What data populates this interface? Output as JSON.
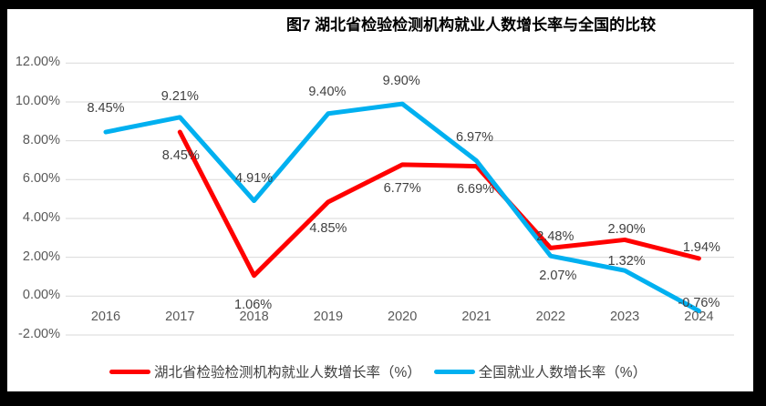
{
  "title": "图7 湖北省检验检测机构就业人数增长率与全国的比较",
  "chart_data": {
    "type": "line",
    "title": "图7 湖北省检验检测机构就业人数增长率与全国的比较",
    "categories": [
      "2016",
      "2017",
      "2018",
      "2019",
      "2020",
      "2021",
      "2022",
      "2023",
      "2024"
    ],
    "y_ticks": [
      "12.00%",
      "10.00%",
      "8.00%",
      "6.00%",
      "4.00%",
      "2.00%",
      "0.00%",
      "-2.00%"
    ],
    "y_tick_values": [
      12,
      10,
      8,
      6,
      4,
      2,
      0,
      -2
    ],
    "ylim": [
      -2,
      12
    ],
    "grid": true,
    "legend_position": "bottom",
    "grid_color": "#D9D9D9",
    "series": [
      {
        "name": "湖北省检验检测机构就业人数增长率（%）",
        "color": "#FF0000",
        "values": [
          null,
          8.45,
          1.06,
          4.85,
          6.77,
          6.69,
          2.48,
          2.9,
          1.94
        ],
        "labels": [
          "",
          "8.45%",
          "1.06%",
          "4.85%",
          "6.77%",
          "6.69%",
          "2.48%",
          "2.90%",
          "1.94%"
        ]
      },
      {
        "name": "全国就业人数增长率（%）",
        "color": "#00B0F0",
        "values": [
          8.45,
          9.21,
          4.91,
          9.4,
          9.9,
          6.97,
          2.07,
          1.32,
          -0.76
        ],
        "labels": [
          "8.45%",
          "9.21%",
          "4.91%",
          "9.40%",
          "9.90%",
          "6.97%",
          "2.07%",
          "1.32%",
          "-0.76%"
        ]
      }
    ]
  }
}
